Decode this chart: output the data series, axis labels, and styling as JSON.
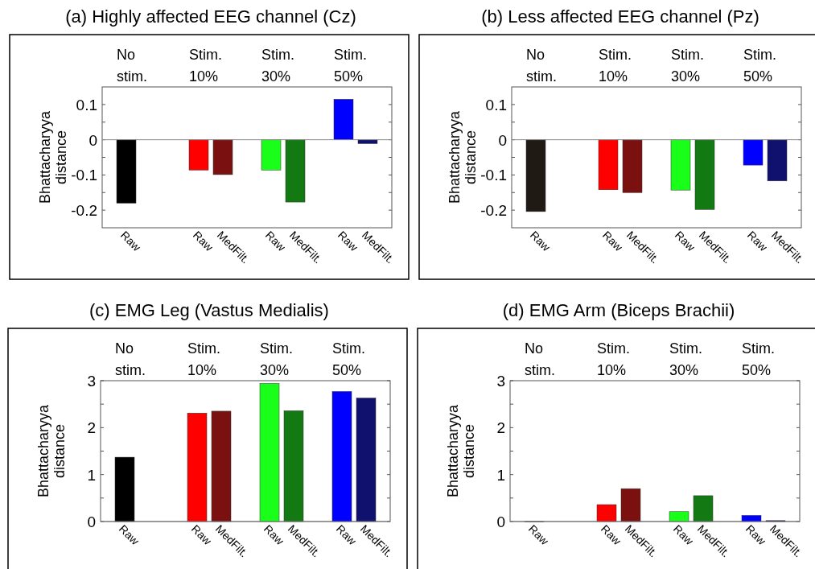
{
  "chart_data": [
    {
      "type": "bar",
      "title": "(a)  Highly affected EEG channel (Cz)",
      "ylabel": "Bhattacharyya distance",
      "categories": [
        "Raw",
        null,
        null,
        "Raw",
        "MedFilt.",
        null,
        "Raw",
        "MedFilt.",
        null,
        "Raw",
        "MedFilt."
      ],
      "values": [
        -0.18,
        null,
        null,
        -0.086,
        -0.099,
        null,
        -0.086,
        -0.177,
        null,
        0.115,
        -0.011
      ],
      "colors": [
        "#000000",
        null,
        null,
        "#ff0000",
        "#7a1010",
        null,
        "#1aff1a",
        "#137a13",
        null,
        "#0000ff",
        "#10106e"
      ],
      "ylim": [
        -0.25,
        0.15
      ],
      "yticks": [
        {
          "value": -0.2,
          "label": "-0.2"
        },
        {
          "value": -0.15,
          "label": null
        },
        {
          "value": -0.1,
          "label": "-0.1"
        },
        {
          "value": -0.05,
          "label": null
        },
        0,
        {
          "value": 0.05,
          "label": null
        },
        {
          "value": 0.1,
          "label": "0.1"
        }
      ],
      "annotations": [
        "No stim.",
        "Stim. 10%",
        "Stim. 30%",
        "Stim. 50%"
      ]
    },
    {
      "type": "bar",
      "title": "(b)  Less affected EEG channel (Pz)",
      "ylabel": "Bhattacharyya distance",
      "categories": [
        "Raw",
        null,
        null,
        "Raw",
        "MedFilt.",
        null,
        "Raw",
        "MedFilt.",
        null,
        "Raw",
        "MedFilt."
      ],
      "values": [
        -0.204,
        null,
        null,
        -0.142,
        -0.15,
        null,
        -0.143,
        -0.198,
        null,
        -0.072,
        -0.117
      ],
      "colors": [
        "#201a14",
        null,
        null,
        "#ff0000",
        "#7a1010",
        null,
        "#1aff1a",
        "#137a13",
        null,
        "#0000ff",
        "#10106e"
      ],
      "ylim": [
        -0.25,
        0.15
      ],
      "yticks": [
        {
          "value": -0.2,
          "label": "-0.2"
        },
        {
          "value": -0.15,
          "label": null
        },
        {
          "value": -0.1,
          "label": "-0.1"
        },
        {
          "value": -0.05,
          "label": null
        },
        0,
        {
          "value": 0.05,
          "label": null
        },
        {
          "value": 0.1,
          "label": "0.1"
        }
      ],
      "annotations": [
        "No stim.",
        "Stim. 10%",
        "Stim. 30%",
        "Stim. 50%"
      ]
    },
    {
      "type": "bar",
      "title": "(c)  EMG Leg (Vastus Medialis)",
      "ylabel": "Bhattacharyya distance",
      "categories": [
        "Raw",
        null,
        null,
        "Raw",
        "MedFilt.",
        null,
        "Raw",
        "MedFilt.",
        null,
        "Raw",
        "MedFilt."
      ],
      "values": [
        1.37,
        null,
        null,
        2.31,
        2.35,
        null,
        2.94,
        2.36,
        null,
        2.77,
        2.63
      ],
      "colors": [
        "#000000",
        null,
        null,
        "#ff0000",
        "#7a1010",
        null,
        "#1aff1a",
        "#137a13",
        null,
        "#0000ff",
        "#10106e"
      ],
      "ylim": [
        0,
        3
      ],
      "yticks": [
        0,
        {
          "value": 0.5,
          "label": null
        },
        1,
        {
          "value": 1.5,
          "label": null
        },
        2,
        {
          "value": 2.5,
          "label": null
        },
        3
      ],
      "annotations": [
        "No stim.",
        "Stim. 10%",
        "Stim. 30%",
        "Stim. 50%"
      ]
    },
    {
      "type": "bar",
      "title": "(d)  EMG Arm (Biceps Brachii)",
      "ylabel": "Bhattacharyya distance",
      "categories": [
        "Raw",
        null,
        null,
        "Raw",
        "MedFilt.",
        null,
        "Raw",
        "MedFilt.",
        null,
        "Raw",
        "MedFilt."
      ],
      "values": [
        0,
        null,
        null,
        0.36,
        0.7,
        null,
        0.21,
        0.55,
        null,
        0.13,
        0.02
      ],
      "colors": [
        "#000000",
        null,
        null,
        "#ff0000",
        "#7a1010",
        null,
        "#1aff1a",
        "#137a13",
        null,
        "#0000ff",
        "#10106e"
      ],
      "ylim": [
        0,
        3
      ],
      "yticks": [
        0,
        {
          "value": 0.5,
          "label": null
        },
        1,
        {
          "value": 1.5,
          "label": null
        },
        2,
        {
          "value": 2.5,
          "label": null
        },
        3
      ],
      "annotations": [
        "No stim.",
        "Stim. 10%",
        "Stim. 30%",
        "Stim. 50%"
      ]
    }
  ]
}
